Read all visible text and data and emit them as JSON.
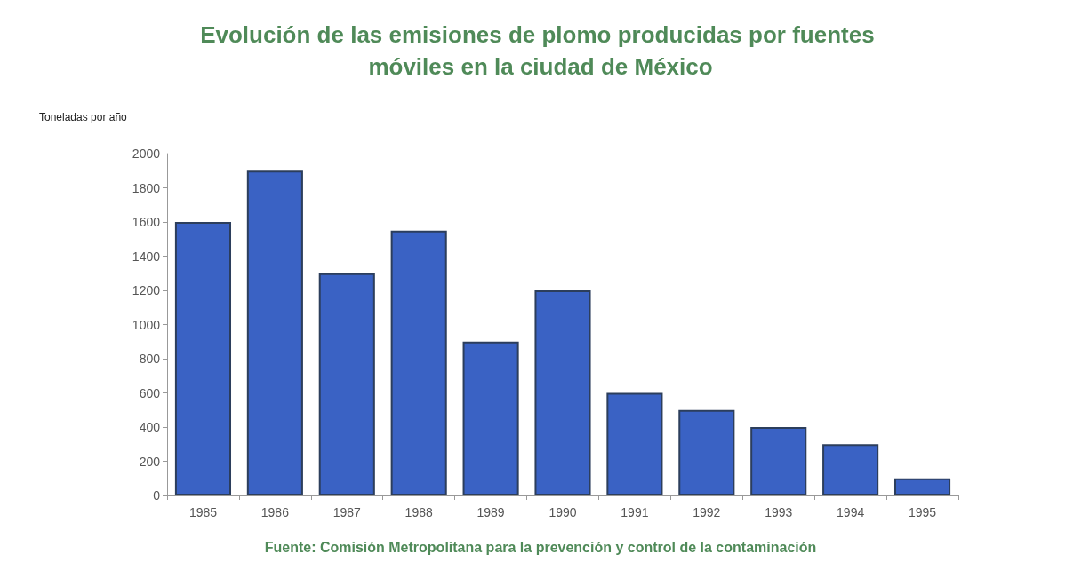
{
  "chart_data": {
    "type": "bar",
    "title": "Evolución de las emisiones de plomo producidas por fuentes móviles en la ciudad de México",
    "ylabel": "Toneladas por año",
    "categories": [
      "1985",
      "1986",
      "1987",
      "1988",
      "1989",
      "1990",
      "1991",
      "1992",
      "1993",
      "1994",
      "1995"
    ],
    "values": [
      1600,
      1900,
      1300,
      1550,
      900,
      1200,
      600,
      500,
      400,
      300,
      100
    ],
    "color": "#3a62c4",
    "ylim": [
      0,
      2000
    ],
    "yticks": [
      0,
      200,
      400,
      600,
      800,
      1000,
      1200,
      1400,
      1600,
      1800,
      2000
    ],
    "grid": false,
    "annotations": [
      "Fuente: Comisión Metropolitana para la prevención y control de la contaminación"
    ]
  }
}
